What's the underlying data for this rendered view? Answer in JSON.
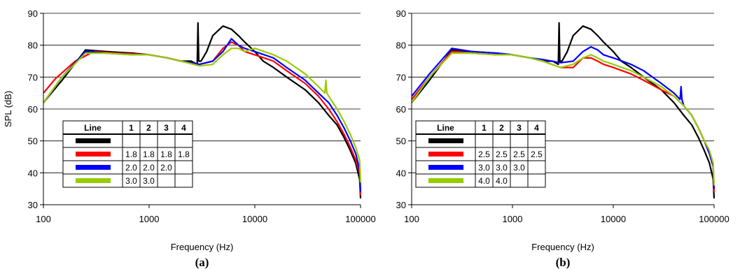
{
  "chart_data": [
    {
      "type": "line",
      "panel_label": "(a)",
      "xlabel": "Frequency (Hz)",
      "ylabel": "SPL (dB)",
      "xscale": "log",
      "xlim": [
        100,
        100000
      ],
      "ylim": [
        30,
        90
      ],
      "x_tick_labels": [
        "100",
        "1000",
        "10000",
        "100000"
      ],
      "y_tick_labels": [
        "30",
        "40",
        "50",
        "60",
        "70",
        "80",
        "90"
      ],
      "grid": "horizontal",
      "legend_table": {
        "header": [
          "Line",
          "1",
          "2",
          "3",
          "4"
        ],
        "rows": [
          {
            "color": "#000000",
            "cells": [
              "",
              "",
              "",
              ""
            ]
          },
          {
            "color": "#ff0000",
            "cells": [
              "1.8",
              "1.8",
              "1.8",
              "1.8"
            ]
          },
          {
            "color": "#0000ff",
            "cells": [
              "2.0",
              "2.0",
              "2.0",
              ""
            ]
          },
          {
            "color": "#99cc00",
            "cells": [
              "3.0",
              "3.0",
              "",
              ""
            ]
          }
        ]
      },
      "series": [
        {
          "color": "#000000",
          "x": [
            100,
            150,
            250,
            400,
            700,
            1000,
            1500,
            2000,
            2500,
            2850,
            2900,
            2950,
            3100,
            3500,
            4000,
            5000,
            6000,
            7000,
            8000,
            10000,
            12000,
            15000,
            20000,
            30000,
            40000,
            50000,
            60000,
            70000,
            80000,
            90000,
            98000,
            100000
          ],
          "y": [
            62,
            69,
            78.5,
            78,
            77.5,
            77,
            76,
            75,
            75,
            74,
            87,
            75,
            75,
            78,
            83,
            86,
            85,
            83,
            81,
            78,
            75,
            73,
            70,
            66,
            62,
            58,
            55,
            51,
            47,
            43,
            38,
            32
          ]
        },
        {
          "color": "#ff0000",
          "x": [
            100,
            130,
            200,
            300,
            500,
            1000,
            1500,
            2000,
            3000,
            4000,
            5000,
            6000,
            7000,
            8000,
            10000,
            15000,
            20000,
            30000,
            40000,
            50000,
            60000,
            70000,
            80000,
            90000,
            98000,
            100000
          ],
          "y": [
            65,
            69.5,
            75,
            78,
            77.5,
            77,
            76,
            75,
            74,
            75,
            79,
            81,
            80,
            78,
            77,
            75,
            72,
            68,
            64,
            60,
            56,
            52,
            48,
            44,
            40,
            33
          ]
        },
        {
          "color": "#0000ff",
          "x": [
            100,
            150,
            250,
            400,
            700,
            1000,
            1500,
            2000,
            3000,
            4000,
            5000,
            6000,
            7000,
            8000,
            10000,
            15000,
            20000,
            30000,
            40000,
            50000,
            60000,
            70000,
            80000,
            90000,
            98000,
            100000
          ],
          "y": [
            62,
            70,
            78,
            77.5,
            77,
            77,
            76,
            75,
            74,
            75,
            78,
            82,
            80,
            79,
            78,
            76,
            73,
            69,
            65,
            62,
            58,
            54,
            50,
            46,
            41,
            34
          ]
        },
        {
          "color": "#99cc00",
          "x": [
            100,
            150,
            250,
            400,
            700,
            1000,
            1500,
            2000,
            3000,
            4000,
            5000,
            6000,
            7000,
            8000,
            10000,
            15000,
            20000,
            30000,
            40000,
            46000,
            47000,
            48000,
            50000,
            60000,
            70000,
            80000,
            90000,
            98000,
            100000
          ],
          "y": [
            62,
            70,
            77.5,
            77.5,
            77,
            77,
            76,
            75,
            73.5,
            74,
            77,
            79,
            79,
            78,
            79,
            77,
            75,
            71,
            67,
            65,
            69,
            65,
            64,
            60,
            56,
            52,
            48,
            44,
            37
          ]
        }
      ]
    },
    {
      "type": "line",
      "panel_label": "(b)",
      "xlabel": "Frequency (Hz)",
      "ylabel": "",
      "xscale": "log",
      "xlim": [
        100,
        100000
      ],
      "ylim": [
        30,
        90
      ],
      "x_tick_labels": [
        "100",
        "1000",
        "10000",
        "100000"
      ],
      "y_tick_labels": [
        "30",
        "40",
        "50",
        "60",
        "70",
        "80",
        "90"
      ],
      "grid": "horizontal",
      "legend_table": {
        "header": [
          "Line",
          "1",
          "2",
          "3",
          "4"
        ],
        "rows": [
          {
            "color": "#000000",
            "cells": [
              "",
              "",
              "",
              ""
            ]
          },
          {
            "color": "#ff0000",
            "cells": [
              "2.5",
              "2.5",
              "2.5",
              "2.5"
            ]
          },
          {
            "color": "#0000ff",
            "cells": [
              "3.0",
              "3.0",
              "3.0",
              ""
            ]
          },
          {
            "color": "#99cc00",
            "cells": [
              "4.0",
              "4.0",
              "",
              ""
            ]
          }
        ]
      },
      "series": [
        {
          "color": "#000000",
          "x": [
            100,
            150,
            250,
            400,
            700,
            1000,
            1500,
            2000,
            2500,
            2850,
            2900,
            2950,
            3100,
            3500,
            4000,
            5000,
            6000,
            7000,
            8000,
            10000,
            12000,
            15000,
            20000,
            30000,
            40000,
            50000,
            60000,
            70000,
            80000,
            90000,
            98000,
            100000
          ],
          "y": [
            62,
            69,
            78.5,
            78,
            77.5,
            77,
            76,
            75,
            75,
            74,
            87,
            75,
            75,
            78,
            83,
            86,
            85,
            83,
            81,
            78,
            75,
            73,
            70,
            66,
            62,
            58,
            55,
            51,
            47,
            43,
            38,
            32
          ]
        },
        {
          "color": "#ff0000",
          "x": [
            100,
            150,
            250,
            400,
            700,
            1000,
            1500,
            2000,
            3000,
            4000,
            5000,
            6000,
            7000,
            8000,
            10000,
            15000,
            20000,
            30000,
            40000,
            50000,
            60000,
            70000,
            80000,
            90000,
            98000,
            100000
          ],
          "y": [
            63,
            70,
            78,
            77.5,
            77,
            77,
            76,
            75,
            73,
            73,
            76,
            76,
            75,
            74,
            73,
            71,
            69,
            66,
            64,
            61,
            58,
            54,
            50,
            46,
            42,
            34
          ]
        },
        {
          "color": "#0000ff",
          "x": [
            100,
            150,
            250,
            400,
            700,
            1000,
            1500,
            2000,
            3000,
            4000,
            5000,
            6000,
            7000,
            8000,
            10000,
            15000,
            20000,
            30000,
            40000,
            46000,
            47000,
            48000,
            50000,
            60000,
            70000,
            80000,
            90000,
            98000,
            100000
          ],
          "y": [
            64,
            71,
            79,
            78,
            77.5,
            77,
            76,
            75.5,
            74.5,
            75,
            78,
            79.5,
            78.5,
            77,
            76,
            74,
            72,
            68,
            65,
            63,
            67,
            63,
            61,
            58,
            54,
            50,
            46,
            42,
            35
          ]
        },
        {
          "color": "#99cc00",
          "x": [
            100,
            150,
            250,
            400,
            700,
            1000,
            1500,
            2000,
            3000,
            4000,
            5000,
            6000,
            7000,
            8000,
            10000,
            15000,
            20000,
            30000,
            40000,
            50000,
            60000,
            70000,
            80000,
            90000,
            98000,
            100000
          ],
          "y": [
            62,
            70,
            77.5,
            77.5,
            77,
            77,
            76,
            75,
            73,
            74,
            76,
            77,
            76,
            75,
            74,
            72,
            70,
            67,
            64,
            61,
            58,
            54,
            50,
            47,
            43,
            36
          ]
        }
      ]
    }
  ]
}
